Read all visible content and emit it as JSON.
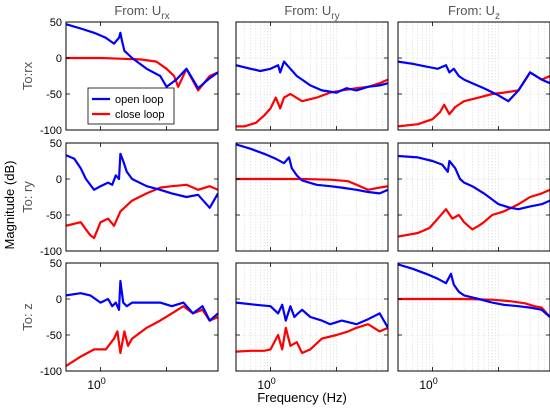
{
  "figure": {
    "ylabel_main": "Magnitude (dB)",
    "xlabel_main": "Frequency  (Hz)"
  },
  "col_titles": [
    {
      "base": "From: U",
      "sub": "rx"
    },
    {
      "base": "From: U",
      "sub": "ry"
    },
    {
      "base": "From: U",
      "sub": "z"
    }
  ],
  "row_labels": [
    "To:rx",
    "To: ry",
    "To: z"
  ],
  "legend": {
    "placement": "inside-bottom-left of top-left panel",
    "entries": [
      "open loop",
      "close loop"
    ]
  },
  "colors": {
    "open_loop": "#0000ff",
    "close_loop": "#ff0000",
    "axis": "#000000",
    "grid": "#d6d6d6",
    "title": "#555555"
  },
  "chart_data": {
    "type": "line",
    "xscale": "log",
    "xlim": [
      0.3,
      60
    ],
    "ylim": [
      -100,
      50
    ],
    "yticks": [
      -100,
      -50,
      0,
      50
    ],
    "xtick_label": "10",
    "xtick_exp": "0",
    "grid": "log minor grid (panels 2–9)",
    "series_names": [
      "open loop",
      "close loop"
    ],
    "panels": [
      {
        "row": 0,
        "col": 0,
        "grid": false,
        "open": {
          "x": [
            0.3,
            0.5,
            0.8,
            1.2,
            1.6,
            1.9,
            2.0,
            2.1,
            2.3,
            3,
            5,
            8,
            10,
            14,
            20,
            30,
            45,
            60
          ],
          "y": [
            47,
            41,
            35,
            28,
            20,
            28,
            35,
            25,
            10,
            0,
            -15,
            -25,
            -40,
            -30,
            -15,
            -42,
            -28,
            -20
          ]
        },
        "close": {
          "x": [
            0.3,
            1,
            2,
            4,
            7,
            10,
            13,
            15,
            20,
            30,
            45,
            60
          ],
          "y": [
            0,
            0,
            -1,
            -2,
            -5,
            -15,
            -25,
            -40,
            -15,
            -45,
            -25,
            -20
          ]
        }
      },
      {
        "row": 0,
        "col": 1,
        "grid": true,
        "open": {
          "x": [
            0.3,
            0.5,
            0.7,
            1,
            1.3,
            1.4,
            1.6,
            2,
            2.5,
            3,
            4,
            6,
            10,
            14,
            20,
            30,
            45,
            60
          ],
          "y": [
            -10,
            -15,
            -18,
            -15,
            -10,
            -20,
            -5,
            -15,
            -25,
            -30,
            -38,
            -45,
            -48,
            -42,
            -45,
            -40,
            -38,
            -35
          ]
        },
        "close": {
          "x": [
            0.3,
            0.4,
            0.6,
            0.8,
            1,
            1.2,
            1.4,
            1.6,
            2,
            3,
            5,
            8,
            12,
            20,
            30,
            45,
            60
          ],
          "y": [
            -95,
            -95,
            -90,
            -80,
            -70,
            -55,
            -70,
            -55,
            -50,
            -60,
            -55,
            -48,
            -45,
            -42,
            -40,
            -35,
            -30
          ]
        }
      },
      {
        "row": 0,
        "col": 2,
        "grid": true,
        "open": {
          "x": [
            0.3,
            0.5,
            0.8,
            1.2,
            1.6,
            1.8,
            2.1,
            2.5,
            3,
            4,
            6,
            10,
            14,
            20,
            30,
            45,
            60
          ],
          "y": [
            -5,
            -8,
            -12,
            -15,
            -10,
            -20,
            -15,
            -25,
            -30,
            -35,
            -42,
            -52,
            -60,
            -45,
            -20,
            -30,
            -35
          ]
        },
        "close": {
          "x": [
            0.3,
            0.6,
            1,
            1.3,
            1.5,
            1.8,
            2.2,
            3,
            5,
            8,
            12,
            20,
            30,
            45,
            60
          ],
          "y": [
            -95,
            -92,
            -85,
            -75,
            -65,
            -78,
            -68,
            -60,
            -55,
            -50,
            -48,
            -45,
            -20,
            -30,
            -25
          ]
        }
      },
      {
        "row": 1,
        "col": 0,
        "grid": false,
        "open": {
          "x": [
            0.3,
            0.4,
            0.5,
            0.6,
            0.8,
            1,
            1.3,
            1.5,
            1.7,
            1.9,
            2.0,
            2.2,
            2.5,
            3,
            5,
            8,
            12,
            20,
            30,
            45,
            60
          ],
          "y": [
            33,
            28,
            15,
            0,
            -15,
            -10,
            -5,
            -8,
            5,
            0,
            35,
            25,
            10,
            0,
            -10,
            -15,
            -20,
            -25,
            -22,
            -40,
            -20
          ]
        },
        "close": {
          "x": [
            0.3,
            0.5,
            0.6,
            0.7,
            0.8,
            1,
            1.3,
            1.6,
            2,
            3,
            5,
            8,
            12,
            20,
            30,
            45,
            60
          ],
          "y": [
            -65,
            -60,
            -70,
            -78,
            -82,
            -60,
            -55,
            -65,
            -45,
            -30,
            -20,
            -12,
            -10,
            -8,
            -15,
            -10,
            -15
          ]
        }
      },
      {
        "row": 1,
        "col": 1,
        "grid": true,
        "open": {
          "x": [
            0.3,
            0.5,
            0.8,
            1.2,
            1.6,
            1.9,
            2.1,
            2.5,
            3,
            5,
            8,
            12,
            20,
            30,
            45,
            60
          ],
          "y": [
            48,
            42,
            35,
            28,
            22,
            30,
            15,
            5,
            -2,
            -8,
            -10,
            -12,
            -15,
            -18,
            -20,
            -15
          ]
        },
        "close": {
          "x": [
            0.3,
            1,
            3,
            8,
            15,
            20,
            30,
            45,
            60
          ],
          "y": [
            0,
            0,
            0,
            -1,
            -3,
            -8,
            -15,
            -12,
            -10
          ]
        }
      },
      {
        "row": 1,
        "col": 2,
        "grid": true,
        "open": {
          "x": [
            0.3,
            0.6,
            1,
            1.4,
            1.7,
            1.8,
            2.2,
            2.6,
            3,
            4,
            6,
            10,
            15,
            20,
            30,
            45,
            60
          ],
          "y": [
            32,
            30,
            25,
            20,
            10,
            25,
            15,
            0,
            -5,
            -10,
            -20,
            -35,
            -40,
            -42,
            -38,
            -35,
            -30
          ]
        },
        "close": {
          "x": [
            0.3,
            0.6,
            0.9,
            1.2,
            1.6,
            2,
            2.5,
            3,
            4,
            5,
            6,
            8,
            12,
            20,
            30,
            45,
            60
          ],
          "y": [
            -80,
            -75,
            -68,
            -55,
            -42,
            -55,
            -50,
            -60,
            -70,
            -65,
            -60,
            -50,
            -45,
            -35,
            -25,
            -20,
            -15
          ]
        }
      },
      {
        "row": 2,
        "col": 0,
        "grid": false,
        "open": {
          "x": [
            0.3,
            0.5,
            0.7,
            1,
            1.3,
            1.5,
            1.7,
            1.9,
            2.0,
            2.2,
            2.5,
            3,
            5,
            8,
            12,
            18,
            25,
            35,
            45,
            60
          ],
          "y": [
            5,
            8,
            5,
            -5,
            0,
            -10,
            -5,
            -15,
            25,
            -5,
            -10,
            -5,
            -5,
            -5,
            -10,
            -5,
            -20,
            -10,
            -30,
            -20
          ]
        },
        "close": {
          "x": [
            0.3,
            0.5,
            0.8,
            1.2,
            1.6,
            1.8,
            2,
            2.3,
            2.6,
            3,
            5,
            8,
            12,
            18,
            25,
            35,
            45,
            60
          ],
          "y": [
            -93,
            -80,
            -70,
            -70,
            -55,
            -45,
            -75,
            -45,
            -65,
            -55,
            -40,
            -30,
            -20,
            -10,
            -20,
            -15,
            -30,
            -25
          ]
        }
      },
      {
        "row": 2,
        "col": 1,
        "grid": true,
        "open": {
          "x": [
            0.3,
            0.6,
            1,
            1.3,
            1.5,
            1.7,
            2,
            2.3,
            2.6,
            3,
            4,
            6,
            8,
            12,
            20,
            30,
            45,
            60
          ],
          "y": [
            -5,
            -8,
            -10,
            -20,
            -8,
            -30,
            -10,
            -25,
            -20,
            -15,
            -25,
            -30,
            -35,
            -30,
            -35,
            -28,
            -20,
            -40
          ]
        },
        "close": {
          "x": [
            0.3,
            0.5,
            0.8,
            1,
            1.3,
            1.5,
            1.7,
            2,
            2.5,
            3,
            4,
            6,
            10,
            15,
            20,
            30,
            45,
            60
          ],
          "y": [
            -73,
            -72,
            -72,
            -70,
            -50,
            -70,
            -40,
            -65,
            -60,
            -75,
            -70,
            -55,
            -50,
            -45,
            -40,
            -35,
            -45,
            -40
          ]
        }
      },
      {
        "row": 2,
        "col": 2,
        "grid": true,
        "open": {
          "x": [
            0.3,
            0.5,
            0.8,
            1.2,
            1.6,
            1.9,
            2.1,
            2.5,
            3,
            5,
            8,
            12,
            20,
            30,
            45,
            60
          ],
          "y": [
            48,
            42,
            35,
            28,
            22,
            35,
            20,
            10,
            5,
            0,
            -5,
            -8,
            -10,
            -12,
            -15,
            -25
          ]
        },
        "close": {
          "x": [
            0.3,
            1,
            3,
            8,
            15,
            25,
            35,
            45,
            60
          ],
          "y": [
            0,
            0,
            0,
            -1,
            -3,
            -6,
            -10,
            -12,
            -25
          ]
        }
      }
    ]
  }
}
